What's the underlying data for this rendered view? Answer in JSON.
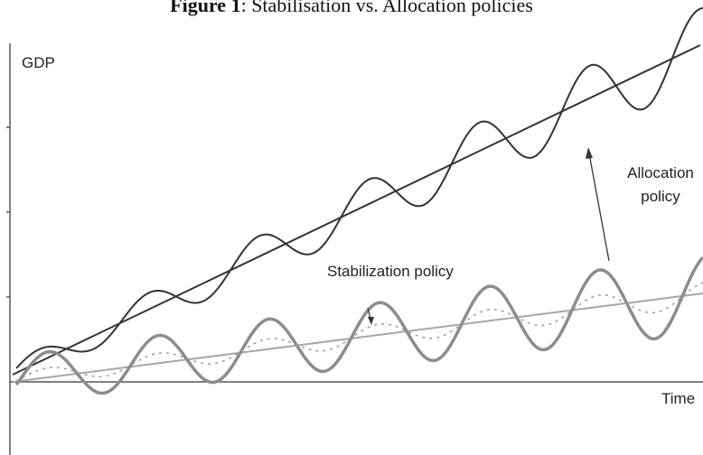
{
  "figure": {
    "title_bold": "Figure 1",
    "title_rest": ": Stabilisation vs. Allocation policies"
  },
  "labels": {
    "y_axis": "GDP",
    "x_axis": "Time",
    "allocation_line1": "Allocation",
    "allocation_line2": "policy",
    "stabilization": "Stabilization policy"
  },
  "colors": {
    "high_path": "#333333",
    "low_path": "#8c8c8c",
    "low_trend": "#a6a6a6",
    "stabilized_path": "#9a9a9a",
    "axis": "#555555"
  }
}
